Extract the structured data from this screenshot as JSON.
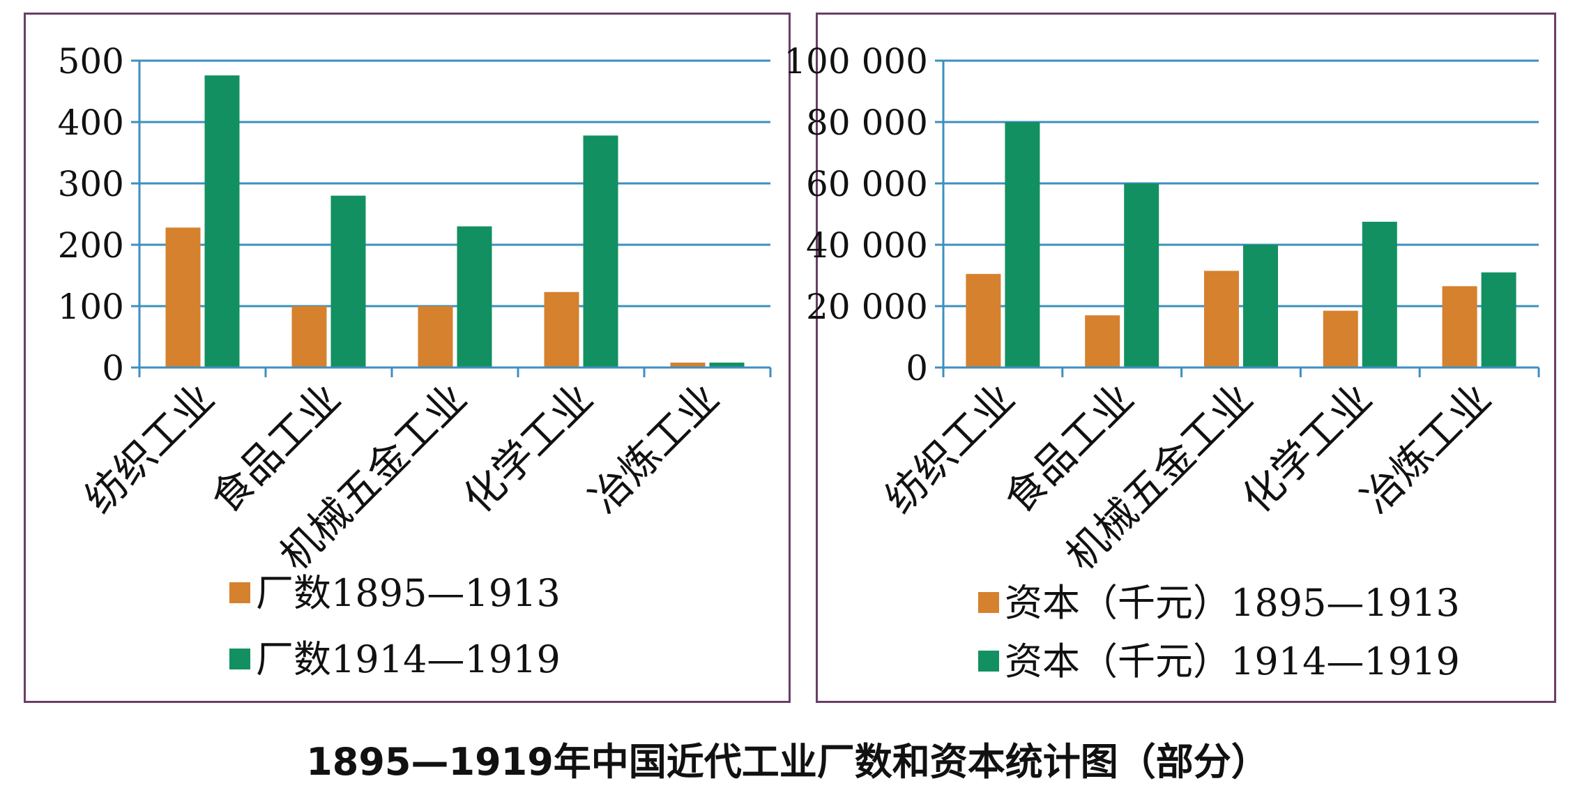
{
  "caption": "1895—1919年中国近代工业厂数和资本统计图（部分）",
  "chart_data": [
    {
      "type": "bar",
      "categories": [
        "纺织工业",
        "食品工业",
        "机械五金工业",
        "化学工业",
        "冶炼工业"
      ],
      "series": [
        {
          "name": "厂数1895—1913",
          "values": [
            228,
            100,
            100,
            123,
            8
          ],
          "color": "#d5812e"
        },
        {
          "name": "厂数1914—1919",
          "values": [
            476,
            280,
            230,
            378,
            8
          ],
          "color": "#129062"
        }
      ],
      "ylim": [
        0,
        500
      ],
      "yticks": [
        "0",
        "100",
        "200",
        "300",
        "400",
        "500"
      ],
      "grid": true,
      "legend_position": "bottom"
    },
    {
      "type": "bar",
      "categories": [
        "纺织工业",
        "食品工业",
        "机械五金工业",
        "化学工业",
        "冶炼工业"
      ],
      "series": [
        {
          "name": "资本（千元）1895—1913",
          "values": [
            30500,
            17000,
            31500,
            18500,
            26500
          ],
          "color": "#d5812e"
        },
        {
          "name": "资本（千元）1914—1919",
          "values": [
            80000,
            60000,
            40000,
            47500,
            31000
          ],
          "color": "#129062"
        }
      ],
      "ylim": [
        0,
        100000
      ],
      "yticks": [
        "0",
        "20 000",
        "40 000",
        "60 000",
        "80 000",
        "100 000"
      ],
      "grid": true,
      "legend_position": "bottom"
    }
  ]
}
